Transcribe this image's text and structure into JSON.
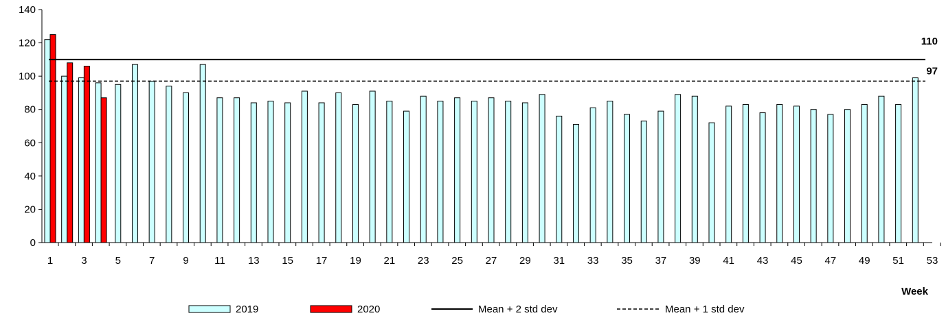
{
  "chart_data": {
    "type": "bar",
    "xlabel": "Week",
    "ylabel": "",
    "ylim": [
      0,
      140
    ],
    "yticks": [
      0,
      20,
      40,
      60,
      80,
      100,
      120,
      140
    ],
    "xlim": [
      1,
      53
    ],
    "xticks": [
      1,
      3,
      5,
      7,
      9,
      11,
      13,
      15,
      17,
      19,
      21,
      23,
      25,
      27,
      29,
      31,
      33,
      35,
      37,
      39,
      41,
      43,
      45,
      47,
      49,
      51,
      53
    ],
    "series": [
      {
        "name": "2019",
        "color": "#ccffff",
        "x": [
          1,
          2,
          3,
          4,
          5,
          6,
          7,
          8,
          9,
          10,
          11,
          12,
          13,
          14,
          15,
          16,
          17,
          18,
          19,
          20,
          21,
          22,
          23,
          24,
          25,
          26,
          27,
          28,
          29,
          30,
          31,
          32,
          33,
          34,
          35,
          36,
          37,
          38,
          39,
          40,
          41,
          42,
          43,
          44,
          45,
          46,
          47,
          48,
          49,
          50,
          51,
          52
        ],
        "values": [
          122,
          100,
          99,
          96,
          95,
          107,
          97,
          94,
          90,
          107,
          87,
          87,
          84,
          85,
          84,
          91,
          84,
          90,
          83,
          91,
          85,
          79,
          88,
          85,
          87,
          85,
          87,
          85,
          84,
          89,
          76,
          71,
          81,
          85,
          77,
          73,
          79,
          89,
          88,
          72,
          82,
          83,
          78,
          83,
          82,
          80,
          77,
          80,
          83,
          88,
          83,
          99
        ]
      },
      {
        "name": "2020",
        "color": "#ff0000",
        "x": [
          1,
          2,
          3,
          4
        ],
        "values": [
          125,
          108,
          106,
          87
        ]
      }
    ],
    "reference_lines": [
      {
        "name": "Mean + 2 std dev",
        "value": 110,
        "label": "110",
        "style": "solid"
      },
      {
        "name": "Mean + 1 std dev",
        "value": 97,
        "label": "97",
        "style": "dashed"
      }
    ],
    "legend": {
      "placement": "bottom",
      "entries": [
        "2019",
        "2020",
        "Mean + 2 std dev",
        "Mean + 1 std dev"
      ]
    }
  }
}
